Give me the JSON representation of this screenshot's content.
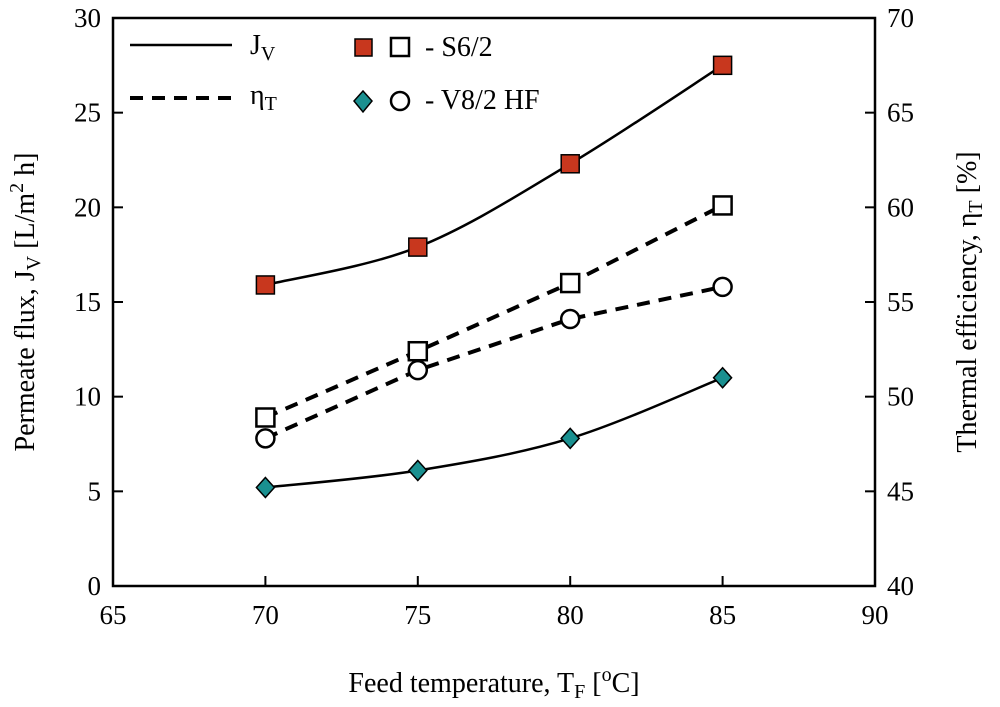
{
  "chart_data": {
    "type": "line",
    "x_axis": {
      "label": "Feed temperature, T",
      "label_sub": "F",
      "label_tail": " [",
      "label_sup": "o",
      "label_unit": "C]",
      "range": [
        65,
        90
      ],
      "ticks": [
        65,
        70,
        75,
        80,
        85,
        90
      ],
      "tick_labels": [
        "65",
        "70",
        "75",
        "80",
        "85",
        "90"
      ]
    },
    "y_left": {
      "label": "Permeate flux, J",
      "label_sub": "V",
      "label_tail": " [L/m",
      "label_sup": "2",
      "label_unit": " h]",
      "range": [
        0,
        30
      ],
      "ticks": [
        0,
        5,
        10,
        15,
        20,
        25,
        30
      ],
      "tick_labels": [
        "0",
        "5",
        "10",
        "15",
        "20",
        "25",
        "30"
      ]
    },
    "y_right": {
      "label": "Thermal efficiency, η",
      "label_sub": "T",
      "label_unit": " [%]",
      "range": [
        40,
        70
      ],
      "ticks": [
        40,
        45,
        50,
        55,
        60,
        65,
        70
      ],
      "tick_labels": [
        "40",
        "45",
        "50",
        "55",
        "60",
        "65",
        "70"
      ]
    },
    "series": [
      {
        "name": "S6/2 permeate flux",
        "axis": "left",
        "line": "solid",
        "marker": "square-filled",
        "color": "#c8371e",
        "x": [
          70,
          75,
          80,
          85
        ],
        "values": [
          15.9,
          17.9,
          22.3,
          27.5
        ]
      },
      {
        "name": "V8/2 HF permeate flux",
        "axis": "left",
        "line": "solid",
        "marker": "diamond-filled",
        "color": "#1a9090",
        "x": [
          70,
          75,
          80,
          85
        ],
        "values": [
          5.2,
          6.1,
          7.8,
          11.0
        ]
      },
      {
        "name": "S6/2 thermal efficiency",
        "axis": "right",
        "line": "dashed",
        "marker": "square-open",
        "color": "#000000",
        "x": [
          70,
          75,
          80,
          85
        ],
        "values": [
          48.9,
          52.4,
          56.0,
          60.1
        ]
      },
      {
        "name": "V8/2 HF thermal efficiency",
        "axis": "right",
        "line": "dashed",
        "marker": "circle-open",
        "color": "#000000",
        "x": [
          70,
          75,
          80,
          85
        ],
        "values": [
          47.8,
          51.4,
          54.1,
          55.8
        ]
      }
    ],
    "legend": {
      "placement": "top-left",
      "line_items": [
        {
          "text": "J",
          "sub": "V",
          "line": "solid"
        },
        {
          "text": "η",
          "sub": "T",
          "line": "dashed"
        }
      ],
      "marker_items": [
        {
          "text": "- S6/2",
          "filled": "square-filled",
          "open": "square-open",
          "color": "#c8371e"
        },
        {
          "text": "- V8/2 HF",
          "filled": "diamond-filled",
          "open": "circle-open",
          "color": "#1a9090"
        }
      ]
    }
  }
}
